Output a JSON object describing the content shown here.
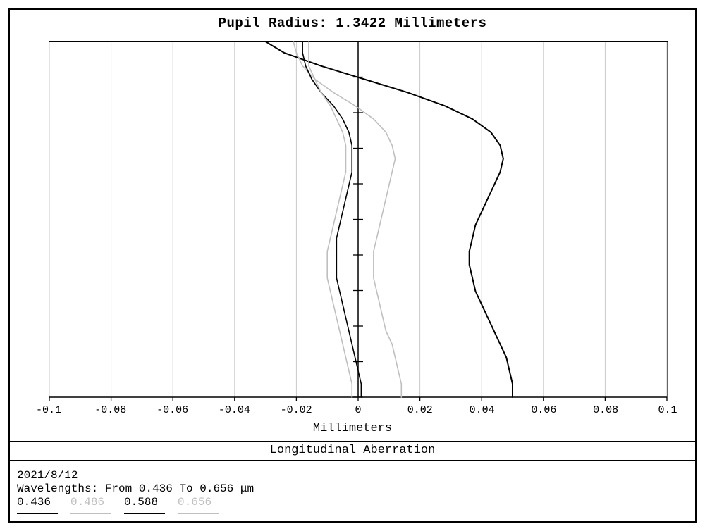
{
  "title": "Pupil Radius: 1.3422 Millimeters",
  "chart": {
    "type": "line",
    "background_color": "#ffffff",
    "grid_color": "#c8c8c8",
    "axis_color": "#000000",
    "x": {
      "min": -0.1,
      "max": 0.1,
      "ticks": [
        -0.1,
        -0.08,
        -0.06,
        -0.04,
        -0.02,
        0,
        0.02,
        0.04,
        0.06,
        0.08,
        0.1
      ],
      "tick_labels": [
        "-0.1",
        "-0.08",
        "-0.06",
        "-0.04",
        "-0.02",
        "0",
        "0.02",
        "0.04",
        "0.06",
        "0.08",
        "0.1"
      ],
      "label": "Millimeters",
      "label_fontsize": 17,
      "tick_fontsize": 15
    },
    "y": {
      "min": 0,
      "max": 1.3422,
      "n_ticks": 11,
      "grid": false,
      "center_ticks": true
    },
    "series": [
      {
        "name": "0.436",
        "color": "#000000",
        "width": 2,
        "points": [
          [
            0.05,
            0.0
          ],
          [
            0.05,
            0.05
          ],
          [
            0.049,
            0.1
          ],
          [
            0.048,
            0.15
          ],
          [
            0.046,
            0.2
          ],
          [
            0.044,
            0.25
          ],
          [
            0.042,
            0.3
          ],
          [
            0.04,
            0.35
          ],
          [
            0.038,
            0.4
          ],
          [
            0.037,
            0.45
          ],
          [
            0.036,
            0.5
          ],
          [
            0.036,
            0.55
          ],
          [
            0.037,
            0.6
          ],
          [
            0.038,
            0.65
          ],
          [
            0.04,
            0.7
          ],
          [
            0.042,
            0.75
          ],
          [
            0.044,
            0.8
          ],
          [
            0.046,
            0.85
          ],
          [
            0.047,
            0.9
          ],
          [
            0.046,
            0.95
          ],
          [
            0.043,
            1.0
          ],
          [
            0.037,
            1.05
          ],
          [
            0.028,
            1.1
          ],
          [
            0.016,
            1.15
          ],
          [
            0.002,
            1.2
          ],
          [
            -0.012,
            1.25
          ],
          [
            -0.024,
            1.3
          ],
          [
            -0.03,
            1.3422
          ]
        ]
      },
      {
        "name": "0.486",
        "color": "#bfbfbf",
        "width": 1.6,
        "points": [
          [
            0.014,
            0.0
          ],
          [
            0.014,
            0.05
          ],
          [
            0.013,
            0.1
          ],
          [
            0.012,
            0.15
          ],
          [
            0.011,
            0.2
          ],
          [
            0.009,
            0.25
          ],
          [
            0.008,
            0.3
          ],
          [
            0.007,
            0.35
          ],
          [
            0.006,
            0.4
          ],
          [
            0.005,
            0.45
          ],
          [
            0.005,
            0.5
          ],
          [
            0.005,
            0.55
          ],
          [
            0.006,
            0.6
          ],
          [
            0.007,
            0.65
          ],
          [
            0.008,
            0.7
          ],
          [
            0.009,
            0.75
          ],
          [
            0.01,
            0.8
          ],
          [
            0.011,
            0.85
          ],
          [
            0.012,
            0.9
          ],
          [
            0.011,
            0.95
          ],
          [
            0.009,
            1.0
          ],
          [
            0.005,
            1.05
          ],
          [
            -0.001,
            1.1
          ],
          [
            -0.008,
            1.15
          ],
          [
            -0.014,
            1.2
          ],
          [
            -0.018,
            1.25
          ],
          [
            -0.02,
            1.3
          ],
          [
            -0.021,
            1.3422
          ]
        ]
      },
      {
        "name": "0.588",
        "color": "#000000",
        "width": 1.6,
        "points": [
          [
            0.001,
            0.0
          ],
          [
            0.001,
            0.05
          ],
          [
            0.0,
            0.1
          ],
          [
            -0.001,
            0.15
          ],
          [
            -0.002,
            0.2
          ],
          [
            -0.003,
            0.25
          ],
          [
            -0.004,
            0.3
          ],
          [
            -0.005,
            0.35
          ],
          [
            -0.006,
            0.4
          ],
          [
            -0.007,
            0.45
          ],
          [
            -0.007,
            0.5
          ],
          [
            -0.007,
            0.55
          ],
          [
            -0.007,
            0.6
          ],
          [
            -0.006,
            0.65
          ],
          [
            -0.005,
            0.7
          ],
          [
            -0.004,
            0.75
          ],
          [
            -0.003,
            0.8
          ],
          [
            -0.002,
            0.85
          ],
          [
            -0.002,
            0.9
          ],
          [
            -0.002,
            0.95
          ],
          [
            -0.003,
            1.0
          ],
          [
            -0.005,
            1.05
          ],
          [
            -0.008,
            1.1
          ],
          [
            -0.012,
            1.15
          ],
          [
            -0.015,
            1.2
          ],
          [
            -0.017,
            1.25
          ],
          [
            -0.018,
            1.3
          ],
          [
            -0.018,
            1.3422
          ]
        ]
      },
      {
        "name": "0.656",
        "color": "#bfbfbf",
        "width": 1.6,
        "points": [
          [
            -0.002,
            0.0
          ],
          [
            -0.002,
            0.05
          ],
          [
            -0.003,
            0.1
          ],
          [
            -0.004,
            0.15
          ],
          [
            -0.005,
            0.2
          ],
          [
            -0.006,
            0.25
          ],
          [
            -0.007,
            0.3
          ],
          [
            -0.008,
            0.35
          ],
          [
            -0.009,
            0.4
          ],
          [
            -0.01,
            0.45
          ],
          [
            -0.01,
            0.5
          ],
          [
            -0.01,
            0.55
          ],
          [
            -0.009,
            0.6
          ],
          [
            -0.008,
            0.65
          ],
          [
            -0.007,
            0.7
          ],
          [
            -0.006,
            0.75
          ],
          [
            -0.005,
            0.8
          ],
          [
            -0.004,
            0.85
          ],
          [
            -0.004,
            0.9
          ],
          [
            -0.004,
            0.95
          ],
          [
            -0.005,
            1.0
          ],
          [
            -0.007,
            1.05
          ],
          [
            -0.009,
            1.1
          ],
          [
            -0.012,
            1.15
          ],
          [
            -0.014,
            1.2
          ],
          [
            -0.016,
            1.25
          ],
          [
            -0.016,
            1.3
          ],
          [
            -0.016,
            1.3422
          ]
        ]
      }
    ]
  },
  "section_title": "Longitudinal Aberration",
  "footer": {
    "date": "2021/8/12",
    "wavelengths_line": "Wavelengths: From 0.436 To 0.656 μm"
  },
  "legend": [
    {
      "label": "0.436",
      "text_color": "#000000",
      "swatch_color": "#000000"
    },
    {
      "label": "0.486",
      "text_color": "#bfbfbf",
      "swatch_color": "#bfbfbf"
    },
    {
      "label": "0.588",
      "text_color": "#000000",
      "swatch_color": "#000000"
    },
    {
      "label": "0.656",
      "text_color": "#bfbfbf",
      "swatch_color": "#bfbfbf"
    }
  ]
}
